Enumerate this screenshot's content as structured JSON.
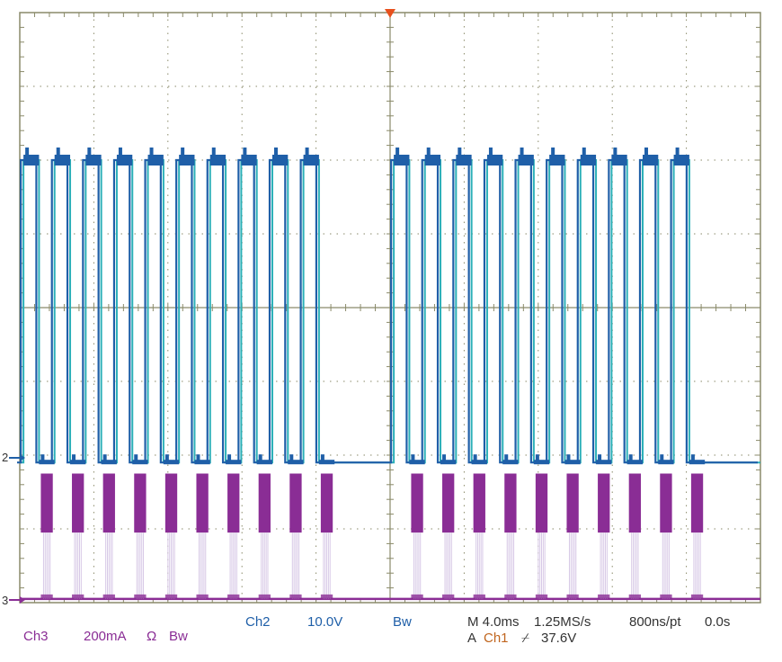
{
  "colors": {
    "background": "#ffffff",
    "grid": "#8a8a6a",
    "ch1": "#c0651e",
    "ch2": "#1f5fa8",
    "ch2_edge": "#2bb0b8",
    "ch3": "#8a2d95",
    "trigger_marker": "#e8501c"
  },
  "markers": {
    "ch2_ref": "2",
    "ch3_ref": "3"
  },
  "readout": {
    "ch3_name": "Ch3",
    "ch3_scale": "200mA",
    "ch3_ohm": "Ω",
    "ch3_bw": "Bw",
    "ch2_name": "Ch2",
    "ch2_scale": "10.0V",
    "ch2_bw": "Bw",
    "timebase": "M 4.0ms",
    "sample_rate": "1.25MS/s",
    "resolution": "800ns/pt",
    "delay": "0.0s",
    "trigger_prefix": "A",
    "trigger_source": "Ch1",
    "trigger_slope": "⌿",
    "trigger_level": "37.6V"
  },
  "chart_data": {
    "type": "line",
    "divisions": {
      "x": 10,
      "y": 8
    },
    "time_per_division": "4.0ms",
    "series": [
      {
        "name": "Ch2",
        "scale": "10.0V",
        "shape": "square wave",
        "pulse_count": 20,
        "high_level_div": 6.0,
        "low_level_div": 1.9,
        "duty_high": 0.5
      },
      {
        "name": "Ch3",
        "scale": "200mA",
        "shape": "switching current bursts during Ch2 low",
        "pulse_count": 20,
        "burst_top_div": 1.75,
        "burst_bottom_div": 0.95,
        "baseline_div": 0.05
      }
    ]
  }
}
